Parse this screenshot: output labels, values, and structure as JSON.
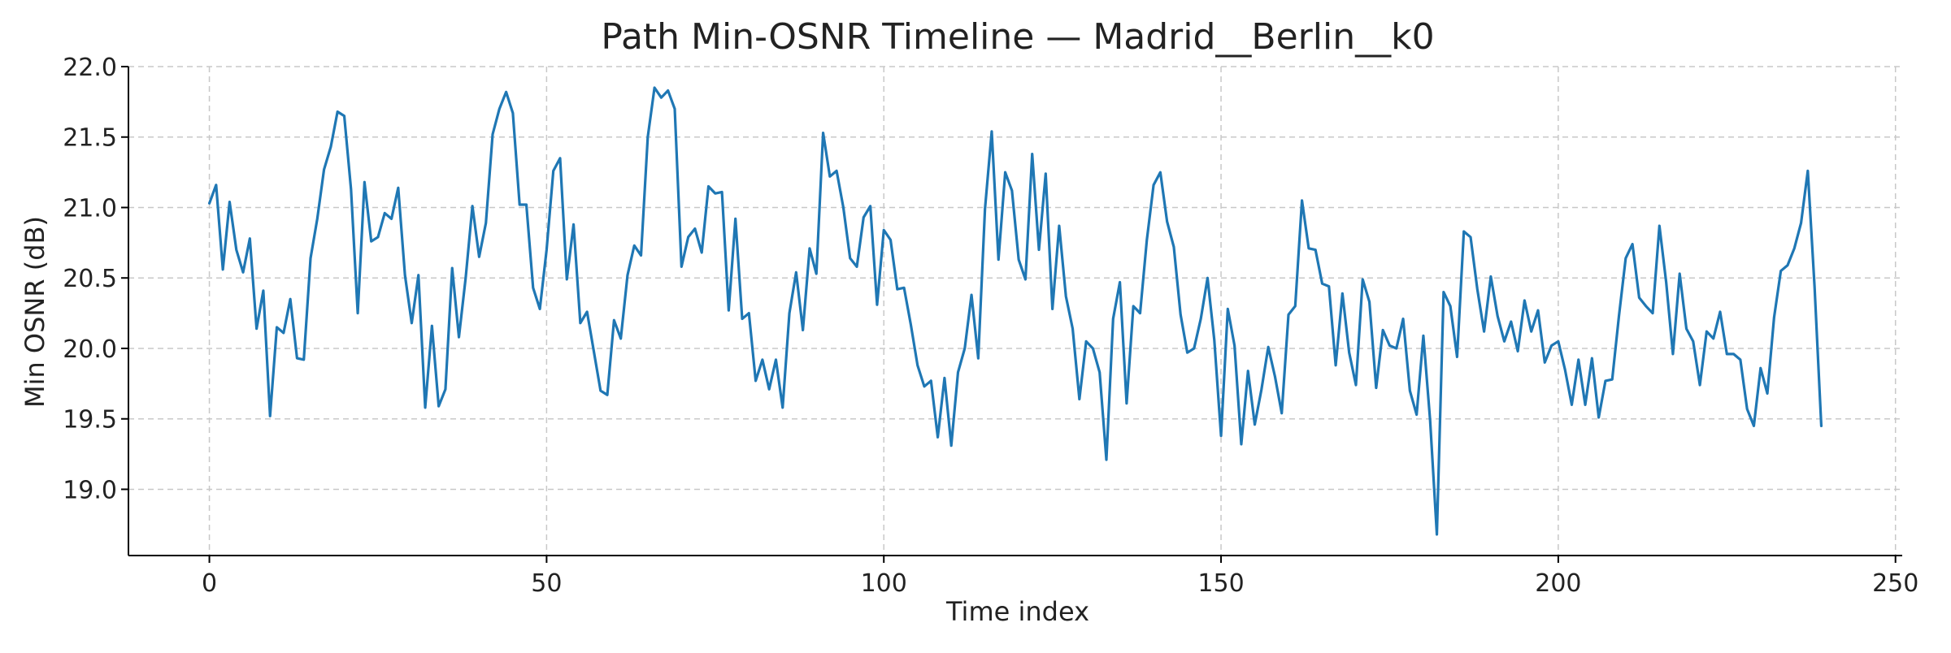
{
  "chart_data": {
    "type": "line",
    "title": "Path Min-OSNR Timeline — Madrid__Berlin__k0",
    "xlabel": "Time index",
    "ylabel": "Min OSNR (dB)",
    "xlim": [
      -12,
      251
    ],
    "ylim": [
      18.53,
      22.0
    ],
    "xticks": [
      0,
      50,
      100,
      150,
      200,
      250
    ],
    "yticks": [
      19.0,
      19.5,
      20.0,
      20.5,
      21.0,
      21.5,
      22.0
    ],
    "xtick_labels": [
      "0",
      "50",
      "100",
      "150",
      "200",
      "250"
    ],
    "ytick_labels": [
      "19.0",
      "19.5",
      "20.0",
      "20.5",
      "21.0",
      "21.5",
      "22.0"
    ],
    "grid": true,
    "legend": "none",
    "line_color": "#1f77b4",
    "series": [
      {
        "x_start": 0,
        "x_step": 1,
        "values": [
          21.03,
          21.16,
          20.56,
          21.04,
          20.7,
          20.54,
          20.78,
          20.14,
          20.41,
          19.52,
          20.15,
          20.11,
          20.35,
          19.93,
          19.92,
          20.64,
          20.92,
          21.27,
          21.43,
          21.68,
          21.65,
          21.13,
          20.25,
          21.18,
          20.76,
          20.79,
          20.96,
          20.92,
          21.14,
          20.52,
          20.18,
          20.52,
          19.58,
          20.16,
          19.59,
          19.71,
          20.57,
          20.08,
          20.5,
          21.01,
          20.65,
          20.89,
          21.52,
          21.7,
          21.82,
          21.67,
          21.02,
          21.02,
          20.43,
          20.28,
          20.7,
          21.26,
          21.35,
          20.49,
          20.88,
          20.18,
          20.26,
          19.98,
          19.7,
          19.67,
          20.2,
          20.07,
          20.52,
          20.73,
          20.66,
          21.5,
          21.85,
          21.78,
          21.83,
          21.7,
          20.58,
          20.79,
          20.85,
          20.68,
          21.15,
          21.1,
          21.11,
          20.27,
          20.92,
          20.21,
          20.25,
          19.77,
          19.92,
          19.71,
          19.92,
          19.58,
          20.25,
          20.54,
          20.13,
          20.71,
          20.53,
          21.53,
          21.22,
          21.26,
          21.0,
          20.64,
          20.58,
          20.93,
          21.01,
          20.31,
          20.84,
          20.77,
          20.42,
          20.43,
          20.17,
          19.88,
          19.73,
          19.77,
          19.37,
          19.79,
          19.31,
          19.83,
          20.0,
          20.38,
          19.93,
          20.99,
          21.54,
          20.63,
          21.25,
          21.12,
          20.63,
          20.49,
          21.38,
          20.7,
          21.24,
          20.28,
          20.87,
          20.37,
          20.14,
          19.64,
          20.05,
          20.0,
          19.83,
          19.21,
          20.21,
          20.47,
          19.61,
          20.3,
          20.25,
          20.77,
          21.16,
          21.25,
          20.9,
          20.72,
          20.24,
          19.97,
          20.0,
          20.21,
          20.5,
          20.06,
          19.38,
          20.28,
          20.02,
          19.32,
          19.84,
          19.46,
          19.71,
          20.01,
          19.8,
          19.54,
          20.24,
          20.3,
          21.05,
          20.71,
          20.7,
          20.46,
          20.44,
          19.88,
          20.39,
          19.97,
          19.74,
          20.49,
          20.33,
          19.72,
          20.13,
          20.02,
          20.0,
          20.21,
          19.7,
          19.53,
          20.09,
          19.49,
          18.68,
          20.4,
          20.3,
          19.94,
          20.83,
          20.79,
          20.42,
          20.12,
          20.51,
          20.23,
          20.05,
          20.19,
          19.98,
          20.34,
          20.12,
          20.27,
          19.9,
          20.02,
          20.05,
          19.85,
          19.6,
          19.92,
          19.6,
          19.93,
          19.51,
          19.77,
          19.78,
          20.23,
          20.64,
          20.74,
          20.36,
          20.3,
          20.25,
          20.87,
          20.47,
          19.96,
          20.53,
          20.14,
          20.05,
          19.74,
          20.12,
          20.07,
          20.26,
          19.96,
          19.96,
          19.92,
          19.57,
          19.45,
          19.86,
          19.68,
          20.22,
          20.55,
          20.59,
          20.71,
          20.89,
          21.26,
          20.44,
          19.45
        ]
      }
    ]
  }
}
